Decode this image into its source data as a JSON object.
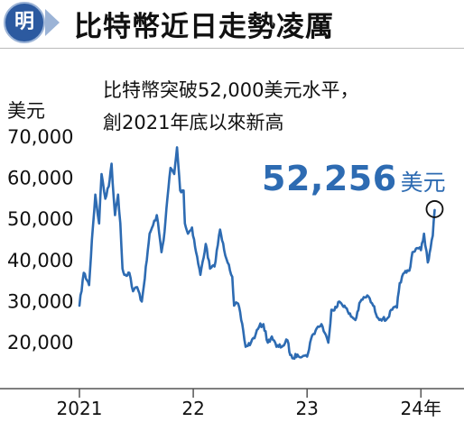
{
  "header": {
    "badge": "明",
    "title": "比特幣近日走勢凌厲"
  },
  "annotation": {
    "line1": "比特幣突破52,000美元水平，",
    "line2": "創2021年底以來新高",
    "value": "52,256",
    "unit": "美元"
  },
  "colors": {
    "series": "#2d6bb2",
    "accent": "#2c5aa0",
    "text": "#111111"
  },
  "chart_data": {
    "type": "line",
    "title": "比特幣近日走勢凌厲",
    "ylabel": "美元",
    "xlabel": "",
    "ylim": [
      10000,
      80000
    ],
    "yticks": [
      {
        "value": 70000,
        "label": "70,000"
      },
      {
        "value": 60000,
        "label": "60,000"
      },
      {
        "value": 50000,
        "label": "50,000"
      },
      {
        "value": 40000,
        "label": "40,000"
      },
      {
        "value": 30000,
        "label": "30,000"
      },
      {
        "value": 20000,
        "label": "20,000"
      }
    ],
    "xlim": [
      "2021-01-01",
      "2024-03-01"
    ],
    "xticks": [
      {
        "value": "2021-01-01",
        "label": "2021"
      },
      {
        "value": "2022-01-01",
        "label": "22"
      },
      {
        "value": "2023-01-01",
        "label": "23"
      },
      {
        "value": "2024-01-01",
        "label": "24年"
      }
    ],
    "grid": false,
    "series": [
      {
        "x": [
          "2021-01-01",
          "2021-01-15",
          "2021-02-01",
          "2021-02-10",
          "2021-02-21",
          "2021-03-05",
          "2021-03-13",
          "2021-03-25",
          "2021-04-05",
          "2021-04-14",
          "2021-04-25",
          "2021-05-05",
          "2021-05-12",
          "2021-05-19",
          "2021-05-25",
          "2021-06-10",
          "2021-06-22",
          "2021-07-05",
          "2021-07-20",
          "2021-08-05",
          "2021-08-14",
          "2021-08-25",
          "2021-09-06",
          "2021-09-21",
          "2021-10-01",
          "2021-10-10",
          "2021-10-20",
          "2021-11-01",
          "2021-11-10",
          "2021-11-20",
          "2021-12-01",
          "2021-12-05",
          "2021-12-15",
          "2021-12-28",
          "2022-01-10",
          "2022-01-24",
          "2022-02-10",
          "2022-02-24",
          "2022-03-10",
          "2022-03-28",
          "2022-04-10",
          "2022-04-25",
          "2022-05-06",
          "2022-05-12",
          "2022-05-25",
          "2022-06-10",
          "2022-06-18",
          "2022-07-05",
          "2022-07-20",
          "2022-08-01",
          "2022-08-14",
          "2022-08-28",
          "2022-09-10",
          "2022-09-25",
          "2022-10-15",
          "2022-10-30",
          "2022-11-08",
          "2022-11-15",
          "2022-12-01",
          "2022-12-20",
          "2023-01-01",
          "2023-01-14",
          "2023-02-01",
          "2023-02-16",
          "2023-03-10",
          "2023-03-20",
          "2023-04-05",
          "2023-04-14",
          "2023-05-01",
          "2023-05-15",
          "2023-06-05",
          "2023-06-21",
          "2023-07-05",
          "2023-07-13",
          "2023-08-01",
          "2023-08-17",
          "2023-09-01",
          "2023-09-11",
          "2023-10-01",
          "2023-10-16",
          "2023-10-25",
          "2023-11-09",
          "2023-11-25",
          "2023-12-05",
          "2023-12-20",
          "2024-01-01",
          "2024-01-11",
          "2024-01-23",
          "2024-02-01",
          "2024-02-08",
          "2024-02-14"
        ],
        "y": [
          29000,
          37000,
          34000,
          45000,
          56000,
          49000,
          61000,
          55000,
          58000,
          63500,
          51000,
          56000,
          49000,
          38000,
          36500,
          37000,
          32500,
          33500,
          30000,
          40000,
          46500,
          48500,
          51000,
          42000,
          47000,
          55000,
          62500,
          61000,
          67500,
          57000,
          57000,
          49000,
          46500,
          48000,
          42000,
          36500,
          44000,
          38000,
          38500,
          47500,
          42500,
          39000,
          36000,
          29000,
          29500,
          23000,
          19000,
          20000,
          22000,
          24000,
          24500,
          20000,
          21500,
          19000,
          19200,
          20600,
          17000,
          16200,
          17100,
          16800,
          16600,
          21000,
          23500,
          24500,
          20000,
          28000,
          28500,
          30000,
          29000,
          27000,
          25500,
          30000,
          31000,
          31500,
          29000,
          26000,
          25800,
          25500,
          28000,
          28500,
          34500,
          37000,
          37500,
          42000,
          43000,
          42500,
          46500,
          39500,
          43000,
          46000,
          52256
        ]
      }
    ],
    "annotations": [
      "比特幣突破52,000美元水平，",
      "創2021年底以來新高",
      "52,256美元"
    ]
  }
}
